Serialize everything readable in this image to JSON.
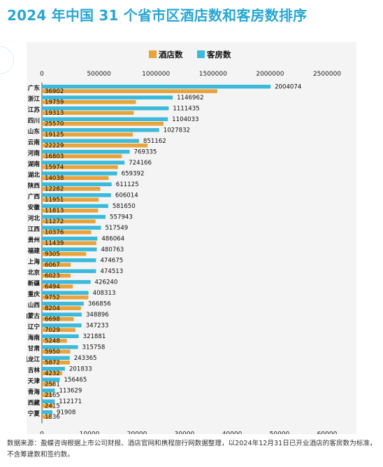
{
  "title": "2024 年中国 31 个省市区酒店数和客房数排序",
  "source_note": "数据来源：盈蝶咨询根据上市公司财报、酒店官网和携程旅行网数据整理，以2024年12月31日已开业酒店的客房数为标准，不含筹建数和签约数。",
  "colors": {
    "hotels": "#e8a33a",
    "rooms": "#3cbadb",
    "title": "#29a7d2"
  },
  "chart_data": {
    "type": "bar",
    "orientation": "horizontal",
    "title": "",
    "legend_position": "top",
    "categories": [
      "广东",
      "浙江",
      "江苏",
      "四川",
      "山东",
      "云南",
      "河南",
      "湖南",
      "湖北",
      "陕西",
      "广西",
      "安徽",
      "河北",
      "江西",
      "贵州",
      "福建",
      "上海",
      "北京",
      "新疆",
      "重庆",
      "山西",
      "内蒙古",
      "辽宁",
      "海南",
      "甘肃",
      "黑龙江",
      "吉林",
      "天津",
      "青海",
      "西藏",
      "宁夏"
    ],
    "series": [
      {
        "name": "酒店数",
        "axis": "bottom",
        "values": [
          36902,
          19759,
          19313,
          25570,
          19125,
          22229,
          16803,
          15974,
          14038,
          12282,
          11951,
          11813,
          11272,
          10376,
          11439,
          9305,
          6067,
          6023,
          6494,
          9752,
          8204,
          6698,
          7029,
          5248,
          5950,
          5872,
          4232,
          2581,
          2165,
          2415,
          1836
        ]
      },
      {
        "name": "客房数",
        "axis": "top",
        "values": [
          2004074,
          1146962,
          1111435,
          1104033,
          1027832,
          851162,
          769335,
          724166,
          659392,
          611125,
          606014,
          581650,
          557943,
          517549,
          486064,
          480763,
          474675,
          474513,
          426240,
          408313,
          366856,
          348896,
          347233,
          321881,
          315758,
          243365,
          201833,
          156465,
          113629,
          112171,
          91908
        ]
      }
    ],
    "top_axis": {
      "range": [
        0,
        2500000
      ],
      "ticks": [
        "0",
        "500000",
        "1000000",
        "1500000",
        "2000000",
        "2500000"
      ]
    },
    "bottom_axis": {
      "range": [
        0,
        60000
      ],
      "ticks": [
        "0",
        "10000",
        "20000",
        "30000",
        "40000",
        "50000",
        "60000"
      ]
    }
  }
}
